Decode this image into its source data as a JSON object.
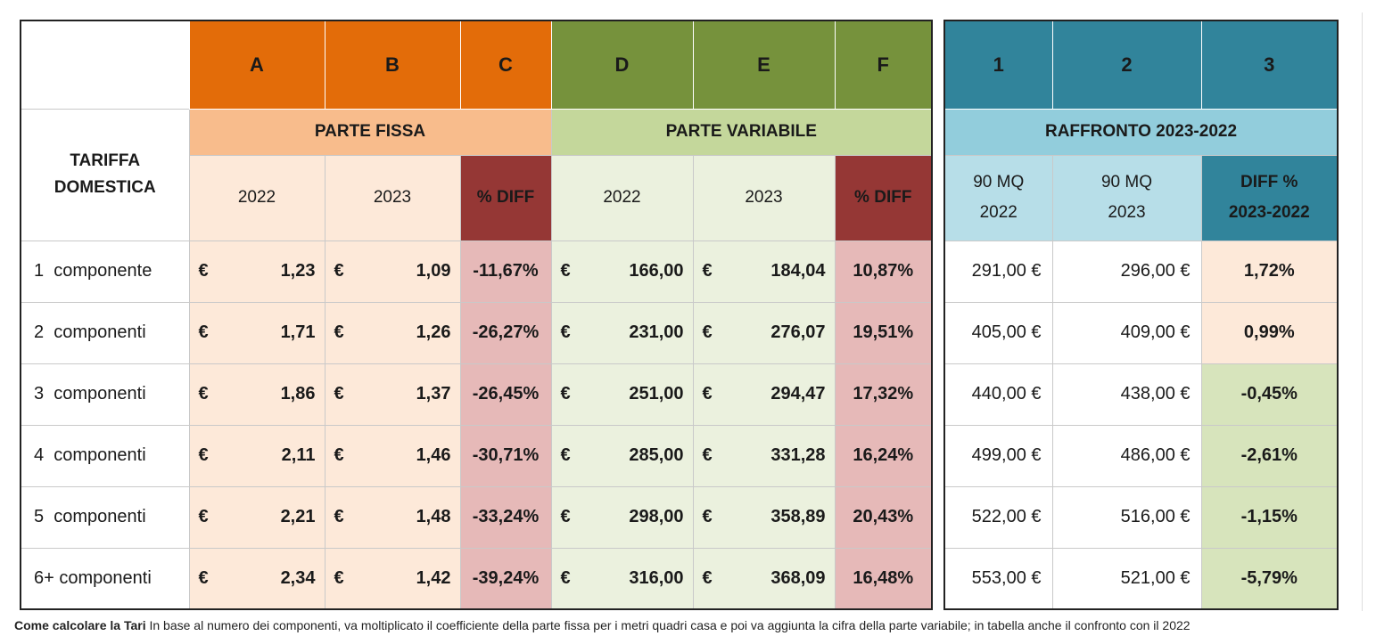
{
  "headers": {
    "letters_left": [
      "A",
      "B",
      "C",
      "D",
      "E",
      "F"
    ],
    "letters_right": [
      "1",
      "2",
      "3"
    ],
    "tariffa_domestica": "TARIFFA\nDOMESTICA",
    "parte_fissa": "PARTE FISSA",
    "parte_variabile": "PARTE VARIABILE",
    "raffronto": "RAFFRONTO 2023-2022",
    "year_2022": "2022",
    "year_2023": "2023",
    "pct_diff": "% DIFF",
    "mq_2022": "90 MQ\n2022",
    "mq_2023": "90 MQ\n2023",
    "diff_pct_range": "DIFF %\n2023-2022"
  },
  "currency": "€",
  "rows": [
    {
      "label": "1  componente",
      "fissa_2022": "1,23",
      "fissa_2023": "1,09",
      "fissa_diff": "-11,67%",
      "var_2022": "166,00",
      "var_2023": "184,04",
      "var_diff": "10,87%",
      "mq_2022": "291,00 €",
      "mq_2023": "296,00 €",
      "diff": "1,72%",
      "diff_sign": "pos"
    },
    {
      "label": "2  componenti",
      "fissa_2022": "1,71",
      "fissa_2023": "1,26",
      "fissa_diff": "-26,27%",
      "var_2022": "231,00",
      "var_2023": "276,07",
      "var_diff": "19,51%",
      "mq_2022": "405,00 €",
      "mq_2023": "409,00 €",
      "diff": "0,99%",
      "diff_sign": "pos"
    },
    {
      "label": "3  componenti",
      "fissa_2022": "1,86",
      "fissa_2023": "1,37",
      "fissa_diff": "-26,45%",
      "var_2022": "251,00",
      "var_2023": "294,47",
      "var_diff": "17,32%",
      "mq_2022": "440,00 €",
      "mq_2023": "438,00 €",
      "diff": "-0,45%",
      "diff_sign": "neg"
    },
    {
      "label": "4  componenti",
      "fissa_2022": "2,11",
      "fissa_2023": "1,46",
      "fissa_diff": "-30,71%",
      "var_2022": "285,00",
      "var_2023": "331,28",
      "var_diff": "16,24%",
      "mq_2022": "499,00 €",
      "mq_2023": "486,00 €",
      "diff": "-2,61%",
      "diff_sign": "neg"
    },
    {
      "label": "5  componenti",
      "fissa_2022": "2,21",
      "fissa_2023": "1,48",
      "fissa_diff": "-33,24%",
      "var_2022": "298,00",
      "var_2023": "358,89",
      "var_diff": "20,43%",
      "mq_2022": "522,00 €",
      "mq_2023": "516,00 €",
      "diff": "-1,15%",
      "diff_sign": "neg"
    },
    {
      "label": "6+ componenti",
      "fissa_2022": "2,34",
      "fissa_2023": "1,42",
      "fissa_diff": "-39,24%",
      "var_2022": "316,00",
      "var_2023": "368,09",
      "var_diff": "16,48%",
      "mq_2022": "553,00 €",
      "mq_2023": "521,00 €",
      "diff": "-5,79%",
      "diff_sign": "neg"
    }
  ],
  "caption": {
    "title": "Come calcolare la Tari",
    "text": " In base al numero dei componenti, va moltiplicato il coefficiente della parte fissa per i metri quadri casa e poi va aggiunta la cifra della parte variabile; in tabella anche il confronto con il 2022"
  },
  "colors": {
    "orange": "#e36c09",
    "green": "#76923c",
    "teal": "#31849b",
    "dark_red": "#953735",
    "light_orange": "#f8bc8c",
    "light_green": "#c4d79b",
    "light_blue": "#92cddc",
    "pink": "#e6b9b8",
    "pale_orange": "#fde9d9",
    "pale_green": "#ebf1de"
  }
}
